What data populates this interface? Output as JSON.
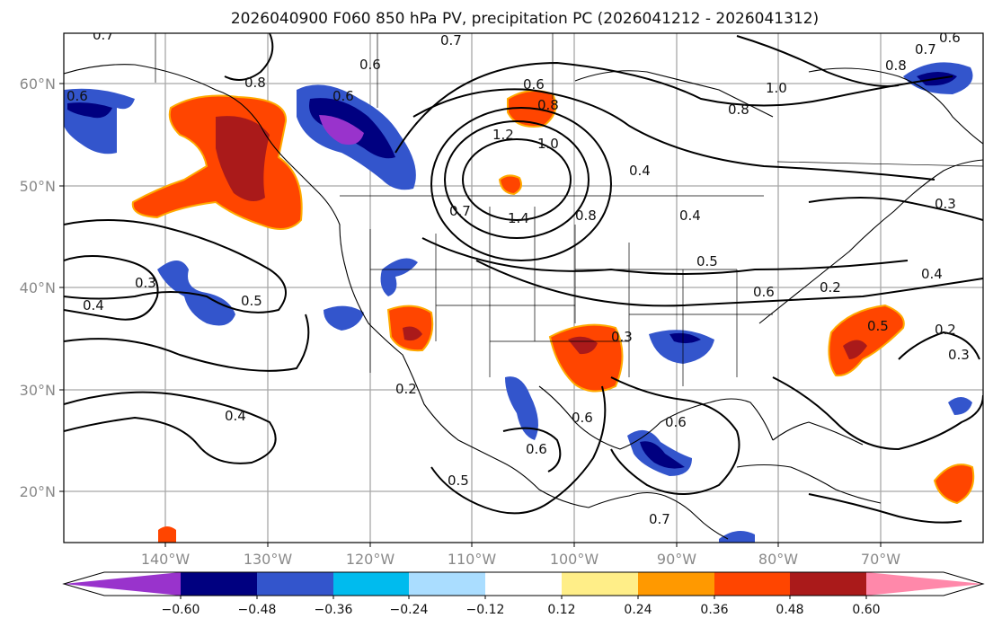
{
  "title": "2026040900 F060 850 hPa PV, precipitation PC (2026041212 - 2026041312)",
  "map": {
    "lon_ticks": [
      "140°W",
      "130°W",
      "120°W",
      "110°W",
      "100°W",
      "90°W",
      "80°W",
      "70°W"
    ],
    "lat_ticks": [
      "60°N",
      "50°N",
      "40°N",
      "30°N",
      "20°N"
    ],
    "extent_lon": [
      -150,
      -59
    ],
    "extent_lat": [
      15,
      65
    ]
  },
  "colorbar": {
    "tick_labels": [
      "−0.60",
      "−0.48",
      "−0.36",
      "−0.24",
      "−0.12",
      "0.12",
      "0.24",
      "0.36",
      "0.48",
      "0.60"
    ],
    "colors": [
      "#9933cc",
      "#000080",
      "#3355cc",
      "#00bbee",
      "#aaddff",
      "#ffffff",
      "#ffee88",
      "#ff9900",
      "#ff4500",
      "#aa1a1a",
      "#ff88aa"
    ]
  },
  "contour_labels": [
    "0.7",
    "0.6",
    "0.8",
    "0.6",
    "1.0",
    "0.8",
    "0.6",
    "0.7",
    "0.6",
    "1.2",
    "0.8",
    "0.4",
    "0.8",
    "1.0",
    "0.7",
    "1.4",
    "0.6",
    "0.7",
    "0.8",
    "0.4",
    "0.5",
    "0.6",
    "0.2",
    "0.4",
    "0.3",
    "0.5",
    "0.2",
    "0.3",
    "0.4",
    "0.3",
    "0.5",
    "0.3",
    "0.2",
    "0.4",
    "0.5",
    "0.6",
    "0.6",
    "0.6",
    "0.7"
  ]
}
